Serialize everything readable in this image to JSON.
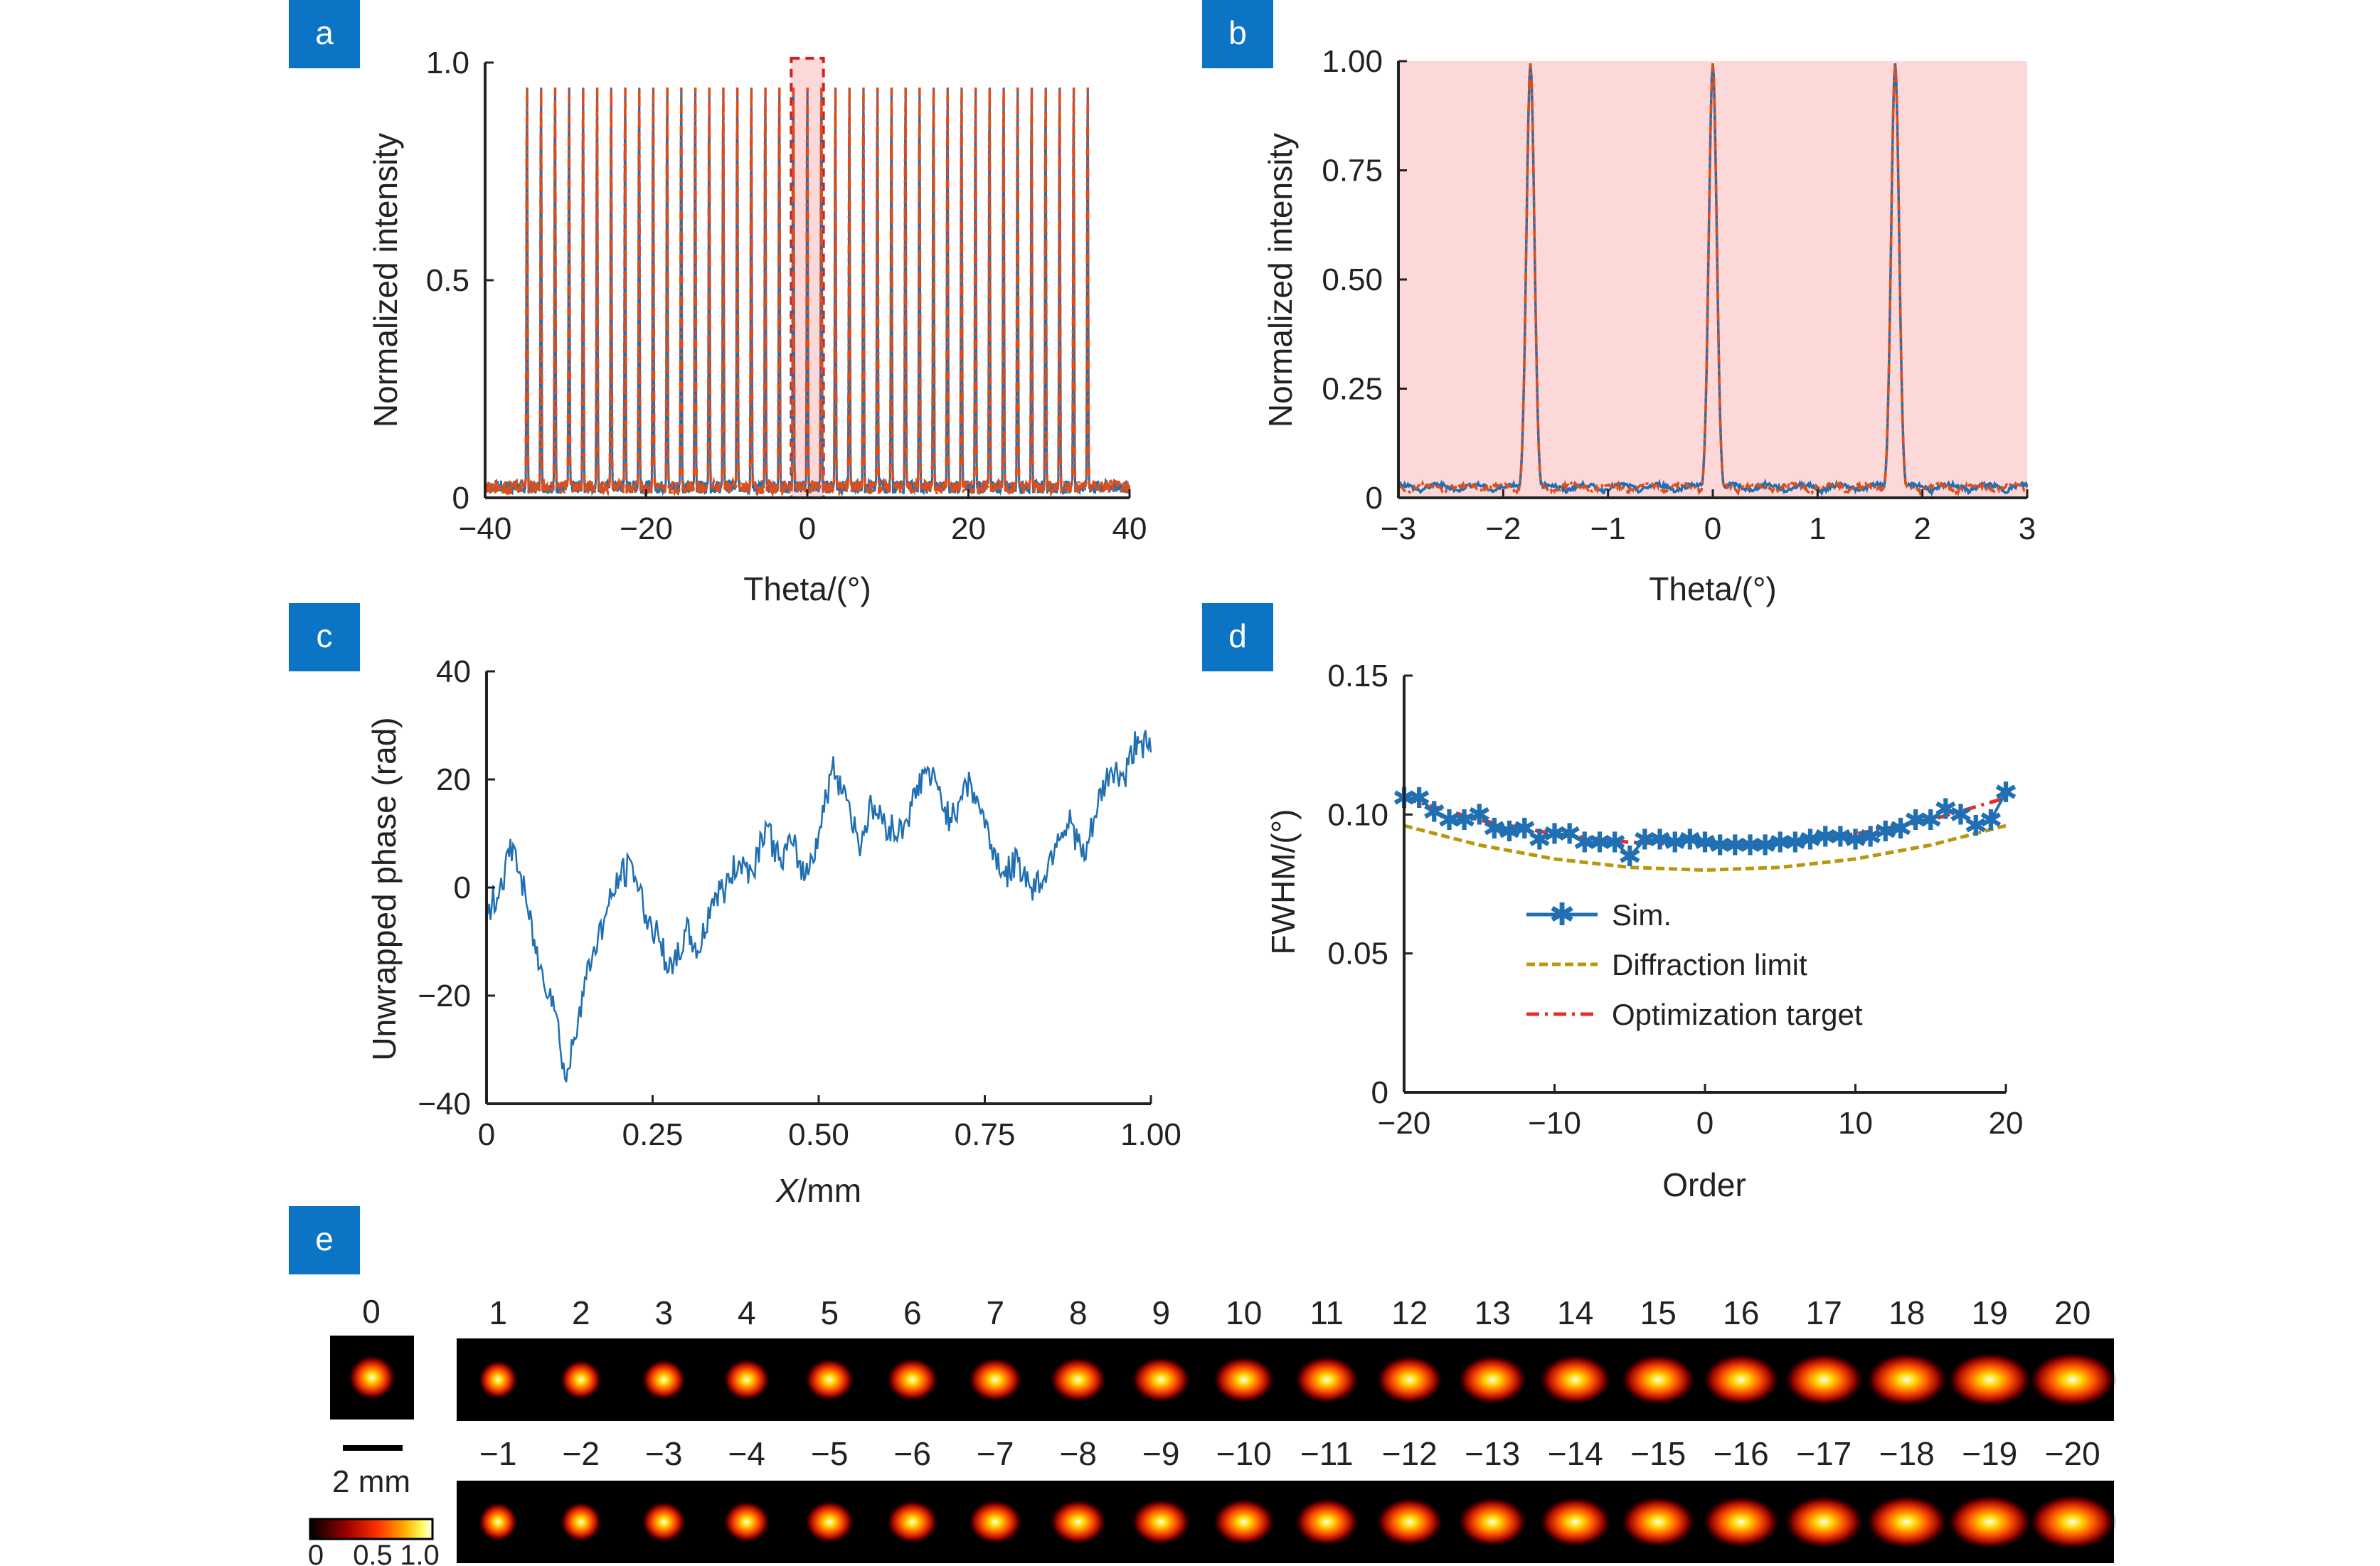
{
  "colors": {
    "tag_bg": "#0b74c4",
    "sim": "#1f6fb2",
    "target": "#d94f1e",
    "diffraction": "#b8970f",
    "optim": "#e0302a",
    "highlight": "#fdd8d8",
    "box": "#d22020"
  },
  "panels": {
    "a": {
      "tag": "a"
    },
    "b": {
      "tag": "b"
    },
    "c": {
      "tag": "c"
    },
    "d": {
      "tag": "d"
    },
    "e": {
      "tag": "e"
    }
  },
  "chart_data": [
    {
      "id": "a",
      "type": "line",
      "xlabel": "Theta/(°)",
      "ylabel": "Normalized intensity",
      "xlim": [
        -40,
        40
      ],
      "ylim": [
        0,
        1
      ],
      "xticks": [
        "−40",
        "−20",
        "0",
        "20",
        "40"
      ],
      "xtick_values": [
        -40,
        -20,
        0,
        20,
        40
      ],
      "yticks": [
        "0",
        "0.5",
        "1.0"
      ],
      "ytick_values": [
        0,
        0.5,
        1.0
      ],
      "peak_spacing_deg": 1.74,
      "peak_orders": [
        -20,
        20
      ],
      "highlight_range": [
        -2,
        2
      ],
      "peak_height": 0.99,
      "series": [
        {
          "style": "solid",
          "color_key": "sim"
        },
        {
          "style": "dashdot",
          "color_key": "target"
        }
      ]
    },
    {
      "id": "b",
      "type": "line",
      "xlabel": "Theta/(°)",
      "ylabel": "Normalized intensity",
      "xlim": [
        -3,
        3
      ],
      "ylim": [
        0,
        1
      ],
      "xticks": [
        "−3",
        "−2",
        "−1",
        "0",
        "1",
        "2",
        "3"
      ],
      "xtick_values": [
        -3,
        -2,
        -1,
        0,
        1,
        2,
        3
      ],
      "yticks": [
        "0",
        "0.25",
        "0.50",
        "0.75",
        "1.00"
      ],
      "ytick_values": [
        0,
        0.25,
        0.5,
        0.75,
        1.0
      ],
      "peaks": [
        -1.74,
        0,
        1.74
      ],
      "peak_width_deg": 0.09,
      "series": [
        {
          "style": "solid",
          "color_key": "sim"
        },
        {
          "style": "dashdot",
          "color_key": "target"
        }
      ]
    },
    {
      "id": "c",
      "type": "line",
      "xlabel_italic": "X",
      "xlabel_rest": "/mm",
      "ylabel": "Unwrapped phase (rad)",
      "xlim": [
        0,
        1
      ],
      "ylim": [
        -40,
        40
      ],
      "xticks": [
        "0",
        "0.25",
        "0.50",
        "0.75",
        "1.00"
      ],
      "xtick_values": [
        0,
        0.25,
        0.5,
        0.75,
        1.0
      ],
      "yticks": [
        "−40",
        "−20",
        "0",
        "20",
        "40"
      ],
      "ytick_values": [
        -40,
        -20,
        0,
        20,
        40
      ],
      "x": [
        0,
        0.02,
        0.04,
        0.06,
        0.08,
        0.1,
        0.12,
        0.14,
        0.16,
        0.18,
        0.2,
        0.22,
        0.24,
        0.26,
        0.28,
        0.3,
        0.32,
        0.34,
        0.36,
        0.38,
        0.4,
        0.42,
        0.44,
        0.46,
        0.48,
        0.5,
        0.52,
        0.54,
        0.56,
        0.58,
        0.6,
        0.62,
        0.64,
        0.66,
        0.68,
        0.7,
        0.72,
        0.74,
        0.76,
        0.78,
        0.8,
        0.82,
        0.84,
        0.86,
        0.88,
        0.9,
        0.92,
        0.94,
        0.96,
        0.98,
        1.0
      ],
      "y": [
        -5,
        0,
        8,
        -3,
        -15,
        -20,
        -36,
        -22,
        -12,
        -5,
        2,
        4,
        -5,
        -10,
        -16,
        -8,
        -12,
        -2,
        0,
        5,
        3,
        12,
        5,
        8,
        2,
        10,
        22,
        18,
        8,
        15,
        12,
        10,
        15,
        22,
        18,
        12,
        20,
        16,
        8,
        2,
        5,
        0,
        2,
        10,
        12,
        5,
        15,
        22,
        20,
        28,
        25
      ],
      "series": [
        {
          "color_key": "sim"
        }
      ]
    },
    {
      "id": "d",
      "type": "line",
      "xlabel": "Order",
      "ylabel": "FWHM/(°)",
      "xlim": [
        -20,
        20
      ],
      "ylim": [
        0,
        0.15
      ],
      "xticks": [
        "−20",
        "−10",
        "0",
        "10",
        "20"
      ],
      "xtick_values": [
        -20,
        -10,
        0,
        10,
        20
      ],
      "yticks": [
        "0",
        "0.05",
        "0.10",
        "0.15"
      ],
      "ytick_values": [
        0,
        0.05,
        0.1,
        0.15
      ],
      "legend_position": "bottom-center",
      "series": [
        {
          "name": "Sim.",
          "style": "solid-star",
          "color_key": "sim",
          "x": [
            -20,
            -19,
            -18,
            -17,
            -16,
            -15,
            -14,
            -13,
            -12,
            -11,
            -10,
            -9,
            -8,
            -7,
            -6,
            -5,
            -4,
            -3,
            -2,
            -1,
            0,
            1,
            2,
            3,
            4,
            5,
            6,
            7,
            8,
            9,
            10,
            11,
            12,
            13,
            14,
            15,
            16,
            17,
            18,
            19,
            20
          ],
          "y": [
            0.106,
            0.106,
            0.101,
            0.098,
            0.098,
            0.1,
            0.095,
            0.094,
            0.095,
            0.091,
            0.093,
            0.093,
            0.09,
            0.09,
            0.09,
            0.085,
            0.091,
            0.091,
            0.09,
            0.091,
            0.09,
            0.089,
            0.089,
            0.089,
            0.089,
            0.09,
            0.09,
            0.091,
            0.092,
            0.092,
            0.091,
            0.092,
            0.094,
            0.095,
            0.098,
            0.098,
            0.102,
            0.1,
            0.096,
            0.098,
            0.108
          ]
        },
        {
          "name": "Diffraction limit",
          "style": "dashed",
          "color_key": "diffraction",
          "x": [
            -20,
            -15,
            -10,
            -5,
            0,
            5,
            10,
            15,
            20
          ],
          "y": [
            0.096,
            0.089,
            0.084,
            0.081,
            0.08,
            0.081,
            0.084,
            0.089,
            0.096
          ]
        },
        {
          "name": "Optimization target",
          "style": "dashdot",
          "color_key": "optim",
          "x": [
            -20,
            -15,
            -10,
            -5,
            0,
            5,
            10,
            15,
            20
          ],
          "y": [
            0.106,
            0.098,
            0.093,
            0.09,
            0.089,
            0.09,
            0.093,
            0.098,
            0.106
          ]
        }
      ]
    }
  ],
  "panel_e": {
    "center_label": "0",
    "top_labels": [
      "1",
      "2",
      "3",
      "4",
      "5",
      "6",
      "7",
      "8",
      "9",
      "10",
      "11",
      "12",
      "13",
      "14",
      "15",
      "16",
      "17",
      "18",
      "19",
      "20"
    ],
    "bottom_labels": [
      "−1",
      "−2",
      "−3",
      "−4",
      "−5",
      "−6",
      "−7",
      "−8",
      "−9",
      "−10",
      "−11",
      "−12",
      "−13",
      "−14",
      "−15",
      "−16",
      "−17",
      "−18",
      "−19",
      "−20"
    ],
    "scalebar_label": "2 mm",
    "colorbar_ticks": [
      "0",
      "0.5",
      "1.0"
    ]
  }
}
